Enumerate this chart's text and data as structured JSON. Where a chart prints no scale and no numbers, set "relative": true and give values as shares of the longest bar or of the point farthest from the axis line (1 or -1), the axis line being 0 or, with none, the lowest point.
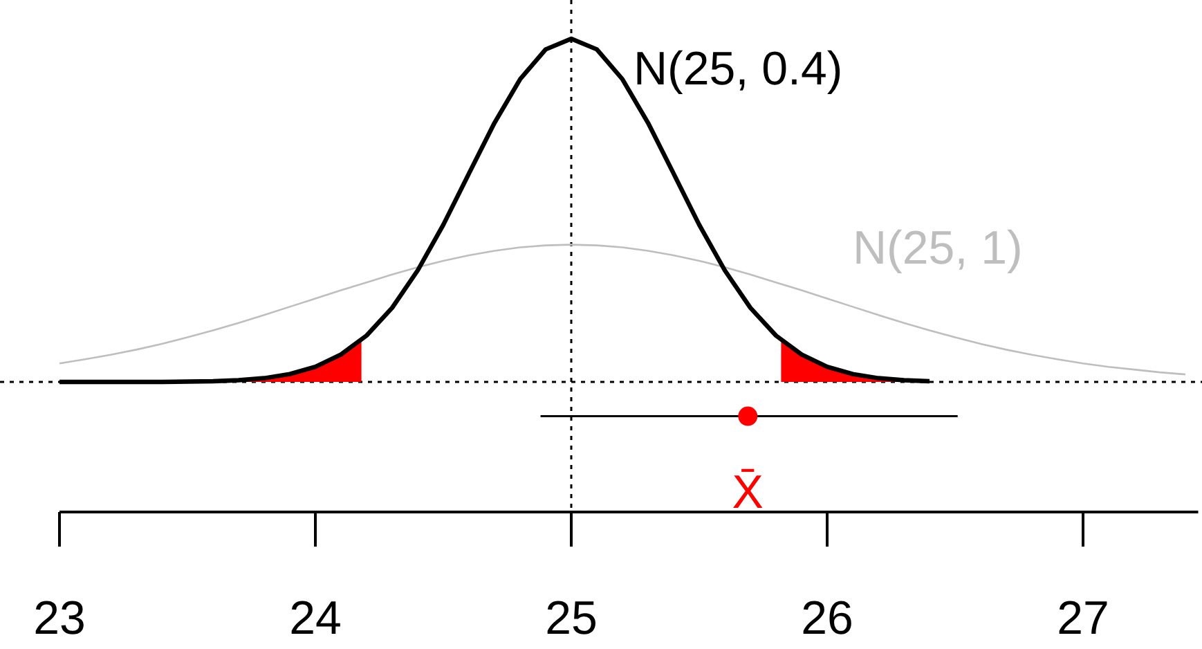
{
  "chart_data": {
    "type": "line",
    "relative": true,
    "xlim": [
      23,
      27.45
    ],
    "xticks": [
      23,
      24,
      25,
      26,
      27
    ],
    "grid": false,
    "legend": false,
    "tick_labels": "x",
    "series": [
      {
        "name": "N(25, 1)",
        "color": "#bebebe",
        "x": [
          23,
          23.1,
          23.2,
          23.3,
          23.4,
          23.5,
          23.6,
          23.7,
          23.8,
          23.9,
          24,
          24.1,
          24.2,
          24.3,
          24.4,
          24.5,
          24.6,
          24.7,
          24.8,
          24.9,
          25,
          25.1,
          25.2,
          25.3,
          25.4,
          25.5,
          25.6,
          25.7,
          25.8,
          25.9,
          26,
          26.1,
          26.2,
          26.3,
          26.4,
          26.5,
          26.6,
          26.7,
          26.8,
          26.9,
          27,
          27.1,
          27.2,
          27.3,
          27.4
        ],
        "values": [
          0.054,
          0.066,
          0.079,
          0.094,
          0.111,
          0.13,
          0.15,
          0.172,
          0.195,
          0.219,
          0.243,
          0.267,
          0.29,
          0.313,
          0.334,
          0.353,
          0.369,
          0.382,
          0.392,
          0.398,
          0.4,
          0.398,
          0.392,
          0.382,
          0.369,
          0.353,
          0.334,
          0.313,
          0.29,
          0.267,
          0.243,
          0.219,
          0.195,
          0.172,
          0.15,
          0.13,
          0.111,
          0.094,
          0.079,
          0.066,
          0.054,
          0.044,
          0.036,
          0.028,
          0.022
        ]
      },
      {
        "type": "area",
        "color": "#ff0000",
        "x": [
          23,
          23.2,
          23.4,
          23.5,
          23.6,
          23.7,
          23.8,
          23.9,
          24,
          24.1,
          24.18
        ],
        "values": [
          0,
          0,
          0,
          0.001,
          0.002,
          0.005,
          0.011,
          0.023,
          0.044,
          0.08,
          0.122
        ]
      },
      {
        "type": "area",
        "color": "#ff0000",
        "x": [
          25.82,
          25.9,
          26,
          26.1,
          26.2,
          26.3,
          26.4
        ],
        "values": [
          0.122,
          0.08,
          0.044,
          0.023,
          0.011,
          0.005,
          0.002
        ]
      },
      {
        "name": "N(25, 0.4)",
        "color": "#000000",
        "x": [
          23,
          23.2,
          23.4,
          23.5,
          23.6,
          23.7,
          23.8,
          23.9,
          24,
          24.1,
          24.2,
          24.3,
          24.4,
          24.5,
          24.6,
          24.7,
          24.8,
          24.9,
          25,
          25.1,
          25.2,
          25.3,
          25.4,
          25.5,
          25.6,
          25.7,
          25.8,
          25.9,
          26,
          26.1,
          26.2,
          26.3,
          26.4
        ],
        "values": [
          0,
          0,
          0,
          0.001,
          0.002,
          0.005,
          0.011,
          0.023,
          0.044,
          0.08,
          0.135,
          0.216,
          0.325,
          0.458,
          0.607,
          0.755,
          0.882,
          0.969,
          1,
          0.969,
          0.882,
          0.755,
          0.607,
          0.458,
          0.325,
          0.216,
          0.135,
          0.08,
          0.044,
          0.023,
          0.011,
          0.005,
          0.002
        ]
      },
      {
        "type": "scatter",
        "name": "X̄",
        "color": "#ff0000",
        "marker": "circle",
        "x": [
          25.69
        ],
        "values": [
          -0.1
        ],
        "xerrors": [
          [
            24.88,
            26.51
          ]
        ]
      }
    ],
    "ref_lines": [
      {
        "axis": "x",
        "value": 25,
        "line_style": "dotted"
      },
      {
        "axis": "y",
        "value": 0,
        "line_style": "dotted"
      }
    ]
  }
}
